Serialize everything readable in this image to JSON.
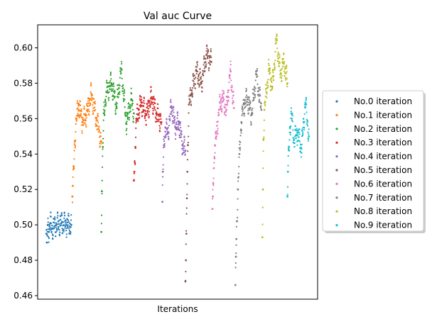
{
  "chart_data": {
    "type": "scatter",
    "title": "Val auc Curve",
    "xlabel": "Iterations",
    "ylabel": "",
    "ylim": [
      0.458,
      0.613
    ],
    "y_ticks": [
      "0.46",
      "0.48",
      "0.50",
      "0.52",
      "0.54",
      "0.56",
      "0.58",
      "0.60"
    ],
    "x_ticks_visible": false,
    "grid": false,
    "legend_position": "right",
    "series": [
      {
        "name": "No.0 iteration",
        "color": "#1f77b4",
        "x": [
          0,
          1,
          3,
          5,
          8,
          12,
          20,
          30,
          40,
          50
        ],
        "y": [
          0.495,
          0.49,
          0.5,
          0.496,
          0.501,
          0.498,
          0.5,
          0.501,
          0.5,
          0.5
        ]
      },
      {
        "name": "No.1 iteration",
        "color": "#ff7f0e",
        "x": [
          52,
          53,
          55,
          57,
          60,
          65,
          72,
          80,
          90,
          100,
          110
        ],
        "y": [
          0.516,
          0.522,
          0.532,
          0.547,
          0.56,
          0.568,
          0.558,
          0.562,
          0.574,
          0.56,
          0.547
        ]
      },
      {
        "name": "No.2 iteration",
        "color": "#2ca02c",
        "x": [
          110,
          111,
          113,
          115,
          120,
          130,
          140,
          150,
          160,
          170,
          175
        ],
        "y": [
          0.496,
          0.519,
          0.544,
          0.563,
          0.575,
          0.58,
          0.567,
          0.588,
          0.557,
          0.571,
          0.563
        ]
      },
      {
        "name": "No.3 iteration",
        "color": "#d62728",
        "x": [
          175,
          176,
          178,
          180,
          185,
          190,
          200,
          210,
          220,
          230
        ],
        "y": [
          0.525,
          0.53,
          0.544,
          0.56,
          0.565,
          0.569,
          0.562,
          0.572,
          0.563,
          0.558
        ]
      },
      {
        "name": "No.4 iteration",
        "color": "#9467bd",
        "x": [
          232,
          233,
          235,
          238,
          243,
          250,
          258,
          265,
          272,
          278
        ],
        "y": [
          0.513,
          0.53,
          0.545,
          0.555,
          0.552,
          0.567,
          0.555,
          0.558,
          0.545,
          0.542
        ]
      },
      {
        "name": "No.5 iteration",
        "color": "#8c564b",
        "x": [
          278,
          279,
          280,
          281,
          282,
          283,
          285,
          290,
          300,
          310,
          320,
          330
        ],
        "y": [
          0.468,
          0.48,
          0.495,
          0.515,
          0.53,
          0.545,
          0.568,
          0.574,
          0.587,
          0.58,
          0.596,
          0.592
        ]
      },
      {
        "name": "No.6 iteration",
        "color": "#e377c2",
        "x": [
          332,
          333,
          335,
          337,
          340,
          345,
          352,
          360,
          368,
          375
        ],
        "y": [
          0.509,
          0.516,
          0.532,
          0.545,
          0.55,
          0.565,
          0.572,
          0.565,
          0.587,
          0.566
        ]
      },
      {
        "name": "No.7 iteration",
        "color": "#7f7f7f",
        "x": [
          378,
          379,
          380,
          381,
          383,
          386,
          390,
          395,
          402,
          410,
          420,
          430
        ],
        "y": [
          0.466,
          0.482,
          0.492,
          0.502,
          0.52,
          0.54,
          0.558,
          0.568,
          0.571,
          0.562,
          0.585,
          0.565
        ]
      },
      {
        "name": "No.8 iteration",
        "color": "#bcbd22",
        "x": [
          432,
          433,
          434,
          436,
          440,
          445,
          452,
          460,
          468,
          475,
          482
        ],
        "y": [
          0.493,
          0.52,
          0.548,
          0.565,
          0.575,
          0.588,
          0.578,
          0.605,
          0.585,
          0.592,
          0.58
        ]
      },
      {
        "name": "No.9 iteration",
        "color": "#17becf",
        "x": [
          482,
          483,
          485,
          487,
          490,
          495,
          502,
          510,
          518,
          525
        ],
        "y": [
          0.516,
          0.53,
          0.542,
          0.555,
          0.563,
          0.548,
          0.552,
          0.543,
          0.569,
          0.55
        ]
      }
    ]
  }
}
